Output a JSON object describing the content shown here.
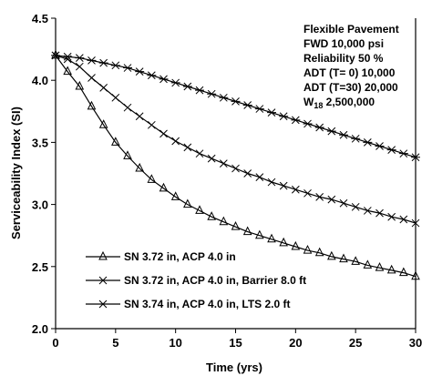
{
  "chart_data": {
    "type": "line",
    "xlabel": "Time (yrs)",
    "ylabel": "Serviceability Index (SI)",
    "xlim": [
      0,
      30
    ],
    "ylim": [
      2.0,
      4.5
    ],
    "xticks": [
      "0",
      "5",
      "10",
      "15",
      "20",
      "25",
      "30"
    ],
    "yticks": [
      "2.0",
      "2.5",
      "3.0",
      "3.5",
      "4.0",
      "4.5"
    ],
    "grid": false,
    "legend_position": "bottom-left",
    "annotations": [
      {
        "lines": [
          {
            "text": "Flexible Pavement"
          },
          {
            "text": "FWD 10,000 psi"
          },
          {
            "text": "Reliability 50 %"
          },
          {
            "text": "ADT (T=  0) 10,000"
          },
          {
            "text": "ADT (T=30) 20,000"
          },
          {
            "prefix": "W",
            "sub": "18",
            "rest": "  2,500,000"
          }
        ]
      }
    ],
    "series": [
      {
        "name": "SN 3.72 in, ACP 4.0 in",
        "marker": "triangle",
        "x": [
          0,
          1,
          2,
          3,
          4,
          5,
          6,
          7,
          8,
          9,
          10,
          11,
          12,
          13,
          14,
          15,
          16,
          17,
          18,
          19,
          20,
          21,
          22,
          23,
          24,
          25,
          26,
          27,
          28,
          29,
          30
        ],
        "values": [
          4.2,
          4.07,
          3.95,
          3.79,
          3.64,
          3.5,
          3.39,
          3.29,
          3.2,
          3.13,
          3.06,
          3.0,
          2.95,
          2.9,
          2.86,
          2.82,
          2.78,
          2.75,
          2.72,
          2.69,
          2.66,
          2.63,
          2.61,
          2.58,
          2.56,
          2.54,
          2.51,
          2.49,
          2.47,
          2.45,
          2.42
        ]
      },
      {
        "name": "SN 3.72 in, ACP 4.0 in, Barrier 8.0 ft",
        "marker": "x",
        "x": [
          0,
          1,
          2,
          3,
          4,
          5,
          6,
          7,
          8,
          9,
          10,
          11,
          12,
          13,
          14,
          15,
          16,
          17,
          18,
          19,
          20,
          21,
          22,
          23,
          24,
          25,
          26,
          27,
          28,
          29,
          30
        ],
        "values": [
          4.2,
          4.17,
          4.11,
          4.02,
          3.94,
          3.86,
          3.78,
          3.71,
          3.64,
          3.57,
          3.51,
          3.46,
          3.41,
          3.37,
          3.33,
          3.29,
          3.25,
          3.22,
          3.18,
          3.15,
          3.12,
          3.09,
          3.06,
          3.04,
          3.01,
          2.98,
          2.95,
          2.93,
          2.9,
          2.88,
          2.85
        ]
      },
      {
        "name": "SN 3.74 in, ACP 4.0 in, LTS 2.0 ft",
        "marker": "star",
        "x": [
          0,
          1,
          2,
          3,
          4,
          5,
          6,
          7,
          8,
          9,
          10,
          11,
          12,
          13,
          14,
          15,
          16,
          17,
          18,
          19,
          20,
          21,
          22,
          23,
          24,
          25,
          26,
          27,
          28,
          29,
          30
        ],
        "values": [
          4.2,
          4.19,
          4.18,
          4.16,
          4.14,
          4.12,
          4.1,
          4.07,
          4.04,
          4.01,
          3.98,
          3.95,
          3.92,
          3.89,
          3.86,
          3.83,
          3.8,
          3.77,
          3.74,
          3.71,
          3.68,
          3.65,
          3.62,
          3.59,
          3.56,
          3.53,
          3.5,
          3.47,
          3.44,
          3.41,
          3.38
        ]
      }
    ]
  }
}
